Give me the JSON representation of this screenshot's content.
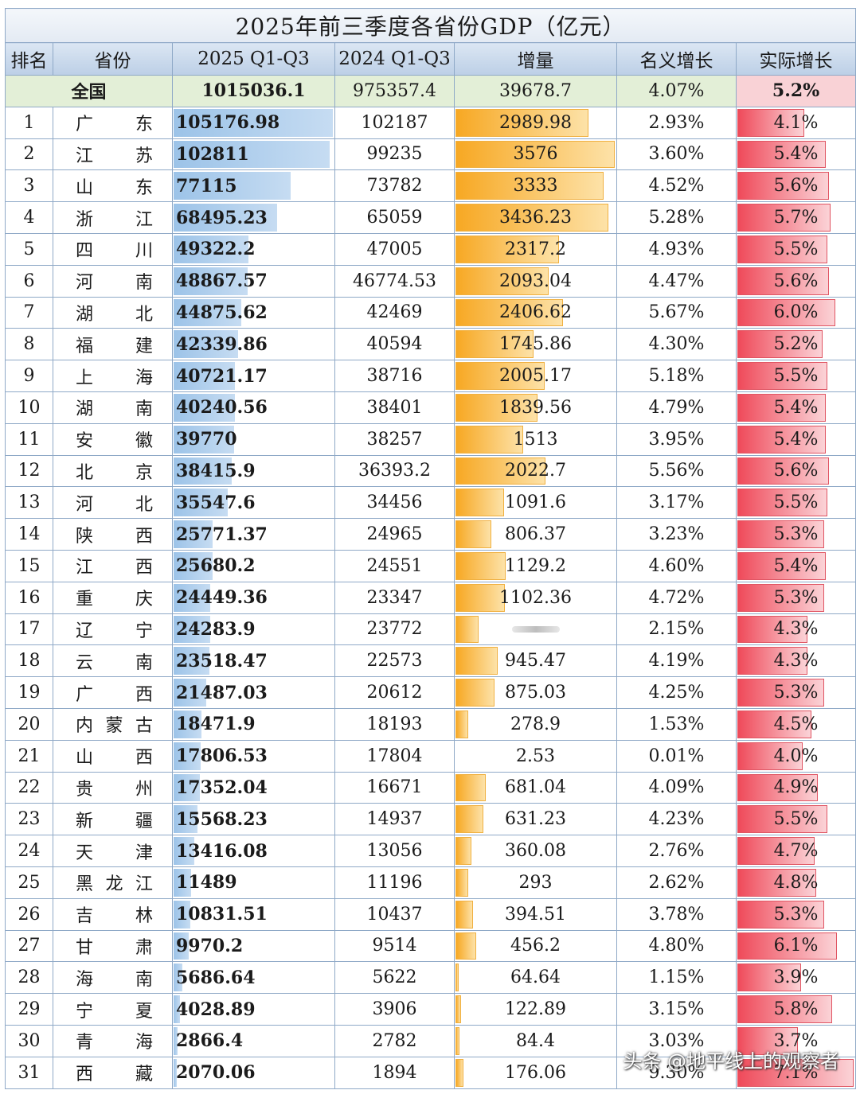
{
  "title": "2025年前三季度各省份GDP（亿元）",
  "headers": [
    "排名",
    "省份",
    "2025 Q1-Q3",
    "2024 Q1-Q3",
    "增量",
    "名义增长",
    "实际增长"
  ],
  "national": {
    "label": "全国",
    "gdp2025": "1015036.1",
    "gdp2024": "975357.4",
    "increase": "39678.7",
    "nominal": "4.07%",
    "real": "5.2%"
  },
  "rows": [
    {
      "rank": "1",
      "prov": [
        "广",
        "",
        "东"
      ],
      "gdp2025": "105176.98",
      "gdp2024": "102187",
      "inc": "2989.98",
      "nominal": "2.93%",
      "real": "4.1%",
      "g": 105176.98,
      "i": 2989.98,
      "r": 4.1
    },
    {
      "rank": "2",
      "prov": [
        "江",
        "",
        "苏"
      ],
      "gdp2025": "102811",
      "gdp2024": "99235",
      "inc": "3576",
      "nominal": "3.60%",
      "real": "5.4%",
      "g": 102811,
      "i": 3576,
      "r": 5.4
    },
    {
      "rank": "3",
      "prov": [
        "山",
        "",
        "东"
      ],
      "gdp2025": "77115",
      "gdp2024": "73782",
      "inc": "3333",
      "nominal": "4.52%",
      "real": "5.6%",
      "g": 77115,
      "i": 3333,
      "r": 5.6
    },
    {
      "rank": "4",
      "prov": [
        "浙",
        "",
        "江"
      ],
      "gdp2025": "68495.23",
      "gdp2024": "65059",
      "inc": "3436.23",
      "nominal": "5.28%",
      "real": "5.7%",
      "g": 68495.23,
      "i": 3436.23,
      "r": 5.7
    },
    {
      "rank": "5",
      "prov": [
        "四",
        "",
        "川"
      ],
      "gdp2025": "49322.2",
      "gdp2024": "47005",
      "inc": "2317.2",
      "nominal": "4.93%",
      "real": "5.5%",
      "g": 49322.2,
      "i": 2317.2,
      "r": 5.5
    },
    {
      "rank": "6",
      "prov": [
        "河",
        "",
        "南"
      ],
      "gdp2025": "48867.57",
      "gdp2024": "46774.53",
      "inc": "2093.04",
      "nominal": "4.47%",
      "real": "5.6%",
      "g": 48867.57,
      "i": 2093.04,
      "r": 5.6
    },
    {
      "rank": "7",
      "prov": [
        "湖",
        "",
        "北"
      ],
      "gdp2025": "44875.62",
      "gdp2024": "42469",
      "inc": "2406.62",
      "nominal": "5.67%",
      "real": "6.0%",
      "g": 44875.62,
      "i": 2406.62,
      "r": 6.0
    },
    {
      "rank": "8",
      "prov": [
        "福",
        "",
        "建"
      ],
      "gdp2025": "42339.86",
      "gdp2024": "40594",
      "inc": "1745.86",
      "nominal": "4.30%",
      "real": "5.2%",
      "g": 42339.86,
      "i": 1745.86,
      "r": 5.2
    },
    {
      "rank": "9",
      "prov": [
        "上",
        "",
        "海"
      ],
      "gdp2025": "40721.17",
      "gdp2024": "38716",
      "inc": "2005.17",
      "nominal": "5.18%",
      "real": "5.5%",
      "g": 40721.17,
      "i": 2005.17,
      "r": 5.5
    },
    {
      "rank": "10",
      "prov": [
        "湖",
        "",
        "南"
      ],
      "gdp2025": "40240.56",
      "gdp2024": "38401",
      "inc": "1839.56",
      "nominal": "4.79%",
      "real": "5.4%",
      "g": 40240.56,
      "i": 1839.56,
      "r": 5.4
    },
    {
      "rank": "11",
      "prov": [
        "安",
        "",
        "徽"
      ],
      "gdp2025": "39770",
      "gdp2024": "38257",
      "inc": "1513",
      "nominal": "3.95%",
      "real": "5.4%",
      "g": 39770,
      "i": 1513,
      "r": 5.4
    },
    {
      "rank": "12",
      "prov": [
        "北",
        "",
        "京"
      ],
      "gdp2025": "38415.9",
      "gdp2024": "36393.2",
      "inc": "2022.7",
      "nominal": "5.56%",
      "real": "5.6%",
      "g": 38415.9,
      "i": 2022.7,
      "r": 5.6
    },
    {
      "rank": "13",
      "prov": [
        "河",
        "",
        "北"
      ],
      "gdp2025": "35547.6",
      "gdp2024": "34456",
      "inc": "1091.6",
      "nominal": "3.17%",
      "real": "5.5%",
      "g": 35547.6,
      "i": 1091.6,
      "r": 5.5
    },
    {
      "rank": "14",
      "prov": [
        "陕",
        "",
        "西"
      ],
      "gdp2025": "25771.37",
      "gdp2024": "24965",
      "inc": "806.37",
      "nominal": "3.23%",
      "real": "5.3%",
      "g": 25771.37,
      "i": 806.37,
      "r": 5.3
    },
    {
      "rank": "15",
      "prov": [
        "江",
        "",
        "西"
      ],
      "gdp2025": "25680.2",
      "gdp2024": "24551",
      "inc": "1129.2",
      "nominal": "4.60%",
      "real": "5.4%",
      "g": 25680.2,
      "i": 1129.2,
      "r": 5.4
    },
    {
      "rank": "16",
      "prov": [
        "重",
        "",
        "庆"
      ],
      "gdp2025": "24449.36",
      "gdp2024": "23347",
      "inc": "1102.36",
      "nominal": "4.72%",
      "real": "5.3%",
      "g": 24449.36,
      "i": 1102.36,
      "r": 5.3
    },
    {
      "rank": "17",
      "prov": [
        "辽",
        "",
        "宁"
      ],
      "gdp2025": "24283.9",
      "gdp2024": "23772",
      "inc": "",
      "nominal": "2.15%",
      "real": "4.3%",
      "g": 24283.9,
      "i": 511.9,
      "r": 4.3,
      "blurred": true
    },
    {
      "rank": "18",
      "prov": [
        "云",
        "",
        "南"
      ],
      "gdp2025": "23518.47",
      "gdp2024": "22573",
      "inc": "945.47",
      "nominal": "4.19%",
      "real": "4.3%",
      "g": 23518.47,
      "i": 945.47,
      "r": 4.3
    },
    {
      "rank": "19",
      "prov": [
        "广",
        "",
        "西"
      ],
      "gdp2025": "21487.03",
      "gdp2024": "20612",
      "inc": "875.03",
      "nominal": "4.25%",
      "real": "5.3%",
      "g": 21487.03,
      "i": 875.03,
      "r": 5.3
    },
    {
      "rank": "20",
      "prov": [
        "内",
        "蒙",
        "古"
      ],
      "gdp2025": "18471.9",
      "gdp2024": "18193",
      "inc": "278.9",
      "nominal": "1.53%",
      "real": "4.5%",
      "g": 18471.9,
      "i": 278.9,
      "r": 4.5
    },
    {
      "rank": "21",
      "prov": [
        "山",
        "",
        "西"
      ],
      "gdp2025": "17806.53",
      "gdp2024": "17804",
      "inc": "2.53",
      "nominal": "0.01%",
      "real": "4.0%",
      "g": 17806.53,
      "i": 2.53,
      "r": 4.0
    },
    {
      "rank": "22",
      "prov": [
        "贵",
        "",
        "州"
      ],
      "gdp2025": "17352.04",
      "gdp2024": "16671",
      "inc": "681.04",
      "nominal": "4.09%",
      "real": "4.9%",
      "g": 17352.04,
      "i": 681.04,
      "r": 4.9
    },
    {
      "rank": "23",
      "prov": [
        "新",
        "",
        "疆"
      ],
      "gdp2025": "15568.23",
      "gdp2024": "14937",
      "inc": "631.23",
      "nominal": "4.23%",
      "real": "5.5%",
      "g": 15568.23,
      "i": 631.23,
      "r": 5.5
    },
    {
      "rank": "24",
      "prov": [
        "天",
        "",
        "津"
      ],
      "gdp2025": "13416.08",
      "gdp2024": "13056",
      "inc": "360.08",
      "nominal": "2.76%",
      "real": "4.7%",
      "g": 13416.08,
      "i": 360.08,
      "r": 4.7
    },
    {
      "rank": "25",
      "prov": [
        "黑",
        "龙",
        "江"
      ],
      "gdp2025": "11489",
      "gdp2024": "11196",
      "inc": "293",
      "nominal": "2.62%",
      "real": "4.8%",
      "g": 11489,
      "i": 293,
      "r": 4.8
    },
    {
      "rank": "26",
      "prov": [
        "吉",
        "",
        "林"
      ],
      "gdp2025": "10831.51",
      "gdp2024": "10437",
      "inc": "394.51",
      "nominal": "3.78%",
      "real": "5.3%",
      "g": 10831.51,
      "i": 394.51,
      "r": 5.3
    },
    {
      "rank": "27",
      "prov": [
        "甘",
        "",
        "肃"
      ],
      "gdp2025": "9970.2",
      "gdp2024": "9514",
      "inc": "456.2",
      "nominal": "4.80%",
      "real": "6.1%",
      "g": 9970.2,
      "i": 456.2,
      "r": 6.1
    },
    {
      "rank": "28",
      "prov": [
        "海",
        "",
        "南"
      ],
      "gdp2025": "5686.64",
      "gdp2024": "5622",
      "inc": "64.64",
      "nominal": "1.15%",
      "real": "3.9%",
      "g": 5686.64,
      "i": 64.64,
      "r": 3.9
    },
    {
      "rank": "29",
      "prov": [
        "宁",
        "",
        "夏"
      ],
      "gdp2025": "4028.89",
      "gdp2024": "3906",
      "inc": "122.89",
      "nominal": "3.15%",
      "real": "5.8%",
      "g": 4028.89,
      "i": 122.89,
      "r": 5.8
    },
    {
      "rank": "30",
      "prov": [
        "青",
        "",
        "海"
      ],
      "gdp2025": "2866.4",
      "gdp2024": "2782",
      "inc": "84.4",
      "nominal": "3.03%",
      "real": "3.7%",
      "g": 2866.4,
      "i": 84.4,
      "r": 3.7
    },
    {
      "rank": "31",
      "prov": [
        "西",
        "",
        "藏"
      ],
      "gdp2025": "2070.06",
      "gdp2024": "1894",
      "inc": "176.06",
      "nominal": "9.30%",
      "real": "7.1%",
      "g": 2070.06,
      "i": 176.06,
      "r": 7.1
    }
  ],
  "watermark": "头条 @地平线上的观察者",
  "colors": {
    "gdp_bar": "#9cc3e8",
    "increase_bar": "#f7a823",
    "real_bar": "#ef4a5a",
    "national_row": "#e3efd7",
    "header": "#bccfe6"
  }
}
